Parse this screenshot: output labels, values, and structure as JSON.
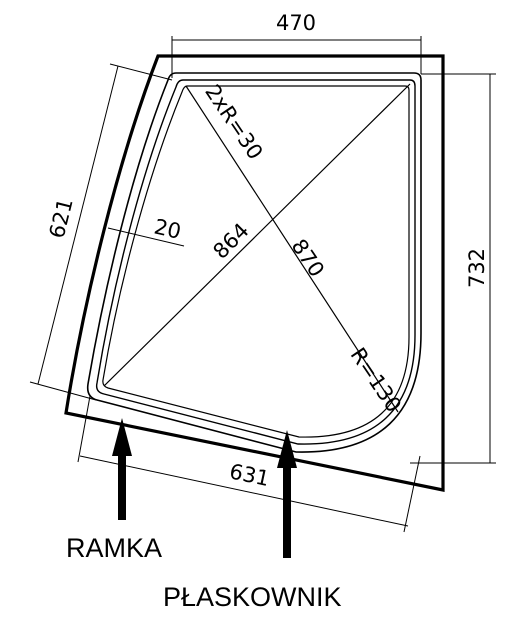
{
  "colors": {
    "line": "#000000",
    "background": "#ffffff"
  },
  "dimensions": {
    "top_width": "470",
    "left_side": "621",
    "right_height": "732",
    "bottom_width": "631",
    "diagonal_a": "864",
    "diagonal_b": "870",
    "frame_width": "20",
    "corner_radii": "2xR=30",
    "bottom_right_radius": "R=130"
  },
  "labels": {
    "ramka": "RAMKA",
    "plaskownik": "PŁASKOWNIK"
  },
  "icons": {
    "arrow": "arrow-up-icon"
  }
}
